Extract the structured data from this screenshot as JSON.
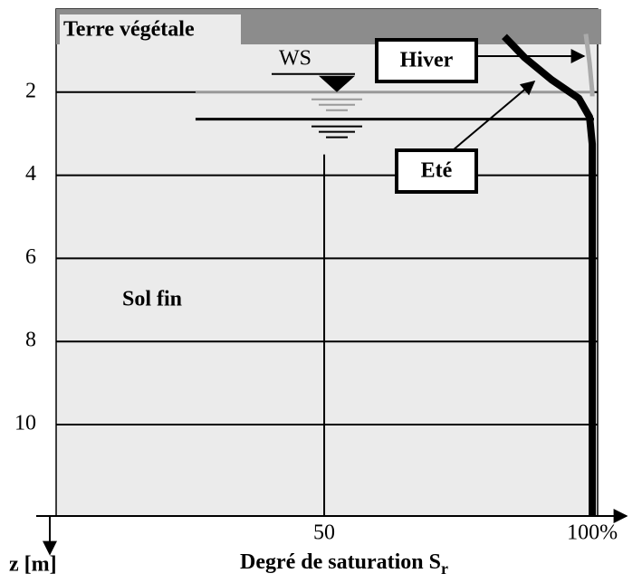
{
  "chart_data": {
    "type": "line",
    "x_label": "Degré de saturation S",
    "x_label_sub": "r",
    "y_label": "z  [m]",
    "xlim": [
      0,
      101
    ],
    "ylim": [
      0,
      12.2
    ],
    "xticks": [
      50,
      {
        "value": 100,
        "label": "100%"
      }
    ],
    "yticks": [
      2,
      4,
      6,
      8,
      10
    ],
    "xgrid_from": 3.5,
    "topsoil": {
      "label": "Terre végétale",
      "z": 0.85,
      "color": "#8c8c8c"
    },
    "soil_label": "Sol fin",
    "water_table_label": "WS",
    "levels": [
      {
        "z": 2.0,
        "x_from": 26,
        "color": "#999999"
      },
      {
        "z": 2.65,
        "x_from": 26,
        "color": "#000000"
      }
    ],
    "series": [
      {
        "name": "Hiver",
        "color": "#aaaaaa",
        "x": [
          98.8,
          99.5,
          100,
          100
        ],
        "values": [
          0.6,
          1.3,
          2.0,
          2.1
        ]
      },
      {
        "name": "Eté",
        "color": "#000000",
        "x": [
          83.6,
          87.4,
          92.4,
          97.5,
          99.5,
          100,
          100
        ],
        "values": [
          0.66,
          1.17,
          1.7,
          2.15,
          2.6,
          3.25,
          12.2
        ]
      }
    ]
  }
}
